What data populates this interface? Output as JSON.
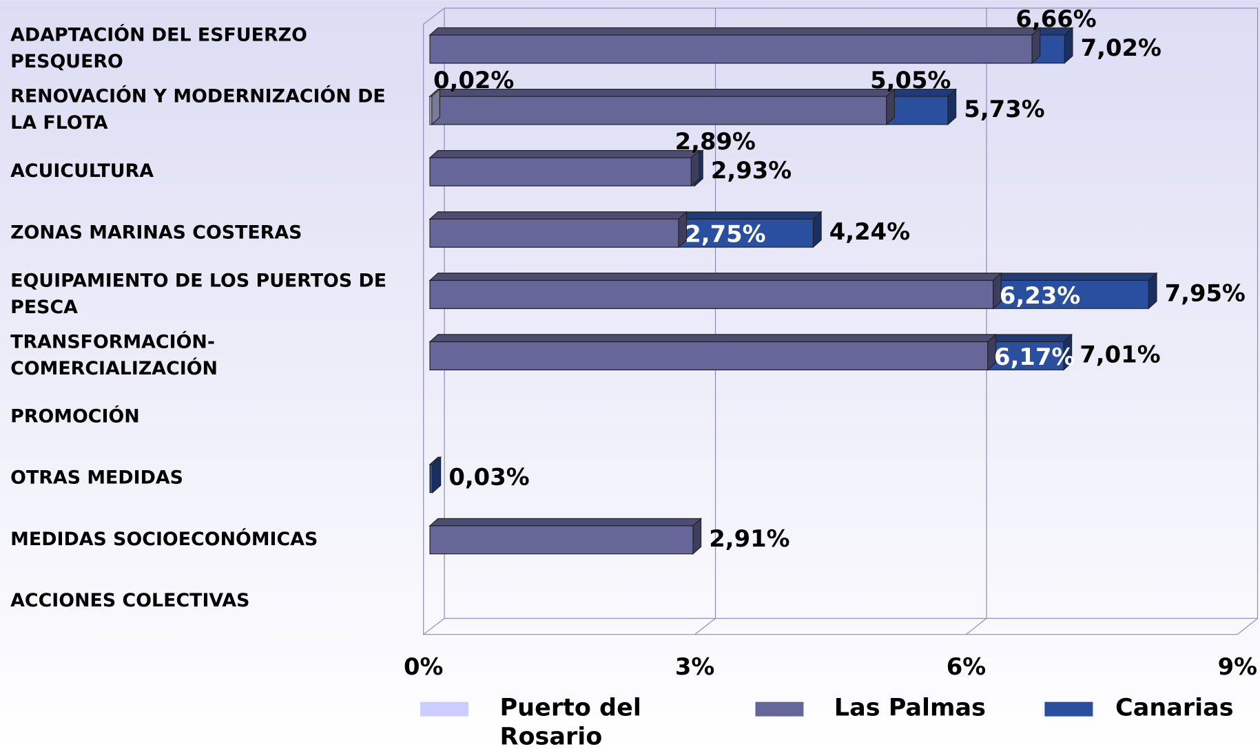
{
  "chart_data": {
    "type": "bar3d",
    "categories": [
      "ADAPTACIÓN DEL ESFUERZO PESQUERO",
      "RENOVACIÓN Y MODERNIZACIÓN DE LA FLOTA",
      "ACUICULTURA",
      "ZONAS MARINAS COSTERAS",
      "EQUIPAMIENTO DE LOS PUERTOS DE PESCA",
      "TRANSFORMACIÓN-COMERCIALIZACIÓN",
      "PROMOCIÓN",
      "OTRAS MEDIDAS",
      "MEDIDAS SOCIOECONÓMICAS",
      "ACCIONES COLECTIVAS"
    ],
    "series": [
      {
        "name": "Puerto del Rosario",
        "color": "#ccccff",
        "values": [
          null,
          0.02,
          null,
          null,
          null,
          null,
          null,
          null,
          null,
          null
        ],
        "value_labels": [
          null,
          "0,02%",
          null,
          null,
          null,
          null,
          null,
          null,
          null,
          null
        ]
      },
      {
        "name": "Las Palmas",
        "color": "#666699",
        "values": [
          6.66,
          5.05,
          2.89,
          2.75,
          6.23,
          6.17,
          null,
          null,
          2.91,
          null
        ],
        "value_labels": [
          "6,66%",
          "5,05%",
          "2,89%",
          "2,75%",
          "6,23%",
          "6,17%",
          null,
          null,
          "2,91%",
          null
        ]
      },
      {
        "name": "Canarias",
        "color": "#2b4f9f",
        "values": [
          7.02,
          5.73,
          2.93,
          4.24,
          7.95,
          7.01,
          null,
          0.03,
          null,
          null
        ],
        "value_labels": [
          "7,02%",
          "5,73%",
          "2,93%",
          "4,24%",
          "7,95%",
          "7,01%",
          null,
          "0,03%",
          null,
          null
        ]
      }
    ],
    "xlim": [
      0,
      9
    ],
    "xticks": [
      {
        "value": 0,
        "label": "0%"
      },
      {
        "value": 3,
        "label": "3%"
      },
      {
        "value": 6,
        "label": "6%"
      },
      {
        "value": 9,
        "label": "9%"
      }
    ],
    "grid": true
  }
}
